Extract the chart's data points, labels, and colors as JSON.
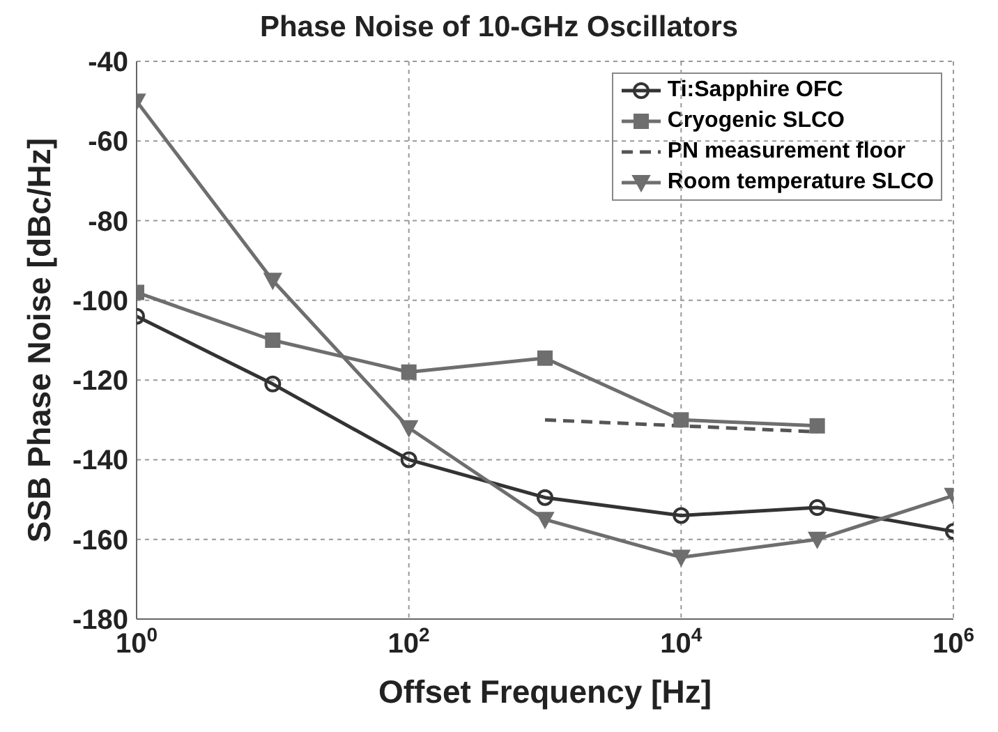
{
  "chart_data": {
    "type": "line",
    "title": "Phase Noise of 10-GHz Oscillators",
    "xlabel": "Offset Frequency [Hz]",
    "ylabel": "SSB Phase Noise [dBc/Hz]",
    "log": "x",
    "grid": true,
    "legend": "top right",
    "xlim": [
      1,
      1000000
    ],
    "xticks": [
      {
        "value": 1,
        "label": "10$^{0}$"
      },
      {
        "value": 100,
        "label": "10$^{2}$"
      },
      {
        "value": 10000,
        "label": "10$^{4}$"
      },
      {
        "value": 1000000,
        "label": "10$^{6}$"
      }
    ],
    "ylim": [
      -180,
      -40
    ],
    "yticks": [
      -180,
      -160,
      -140,
      -120,
      -100,
      -80,
      -60,
      -40
    ],
    "series": [
      {
        "name": "Ti:Sapphire OFC",
        "color": "#333333",
        "marker": "circle",
        "line_style": "solid",
        "x": [
          1,
          10,
          100,
          1000,
          10000,
          100000,
          1000000
        ],
        "values": [
          -104,
          -121,
          -140,
          -149.5,
          -154,
          -152,
          -158
        ]
      },
      {
        "name": "Cryogenic SLCO",
        "color": "#6e6e6e",
        "marker": "square",
        "line_style": "solid",
        "x": [
          1,
          10,
          100,
          1000,
          10000,
          100000
        ],
        "values": [
          -98,
          -110,
          -118,
          -114.5,
          -130,
          -131.5
        ]
      },
      {
        "name": "PN measurement floor",
        "color": "#555555",
        "marker": "none",
        "line_style": "dashed",
        "x": [
          1000,
          100000
        ],
        "values": [
          -130,
          -133
        ]
      },
      {
        "name": "Room temperature SLCO",
        "color": "#6e6e6e",
        "marker": "triangle",
        "line_style": "solid",
        "x": [
          1,
          10,
          100,
          1000,
          10000,
          100000,
          1000000
        ],
        "values": [
          -50,
          -95,
          -132,
          -155,
          -164.5,
          -160,
          -149
        ]
      }
    ]
  }
}
